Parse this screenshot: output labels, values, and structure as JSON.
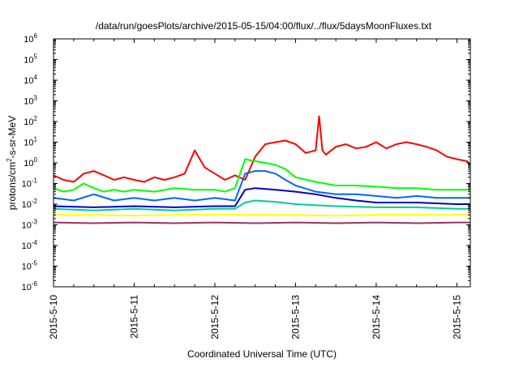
{
  "chart_data": {
    "type": "line",
    "title": "/data/run/goesPlots/archive/2015-05-15/04:00/flux/../flux/5daysMoonFluxes.txt",
    "xlabel": "Coordinated Universal Time (UTC)",
    "ylabel": {
      "prefix": "protons/cm",
      "sup": "2",
      "suffix": "-s-sr-MeV"
    },
    "y_scale": "log",
    "ylim": [
      1e-06,
      1000000.0
    ],
    "y_ticks": [
      {
        "value": 1e-06,
        "base": "10",
        "exp": "-6"
      },
      {
        "value": 1e-05,
        "base": "10",
        "exp": "-5"
      },
      {
        "value": 0.0001,
        "base": "10",
        "exp": "-4"
      },
      {
        "value": 0.001,
        "base": "10",
        "exp": "-3"
      },
      {
        "value": 0.01,
        "base": "10",
        "exp": "-2"
      },
      {
        "value": 0.1,
        "base": "10",
        "exp": "-1"
      },
      {
        "value": 1,
        "base": "10",
        "exp": "0"
      },
      {
        "value": 10,
        "base": "10",
        "exp": "1"
      },
      {
        "value": 100,
        "base": "10",
        "exp": "2"
      },
      {
        "value": 1000,
        "base": "10",
        "exp": "3"
      },
      {
        "value": 10000,
        "base": "10",
        "exp": "4"
      },
      {
        "value": 100000,
        "base": "10",
        "exp": "5"
      },
      {
        "value": 1000000,
        "base": "10",
        "exp": "6"
      }
    ],
    "xlim": [
      "2015-05-10",
      "2015-05-15T04:00"
    ],
    "x_ticks": [
      "2015-5-10",
      "2015-5-11",
      "2015-5-12",
      "2015-5-13",
      "2015-5-14",
      "2015-5-15"
    ],
    "grid": false,
    "legend": "none",
    "series": [
      {
        "color": "#ff0000",
        "x": [
          "2015-05-10T00:00",
          "2015-05-10T03:00",
          "2015-05-10T06:00",
          "2015-05-10T09:00",
          "2015-05-10T12:00",
          "2015-05-10T15:00",
          "2015-05-10T18:00",
          "2015-05-10T21:00",
          "2015-05-11T00:00",
          "2015-05-11T03:00",
          "2015-05-11T06:00",
          "2015-05-11T09:00",
          "2015-05-11T12:00",
          "2015-05-11T15:00",
          "2015-05-11T18:00",
          "2015-05-11T21:00",
          "2015-05-12T00:00",
          "2015-05-12T03:00",
          "2015-05-12T06:00",
          "2015-05-12T09:00",
          "2015-05-12T12:00",
          "2015-05-12T15:00",
          "2015-05-12T18:00",
          "2015-05-12T21:00",
          "2015-05-13T00:00",
          "2015-05-13T03:00",
          "2015-05-13T06:00",
          "2015-05-13T07:00",
          "2015-05-13T08:00",
          "2015-05-13T09:00",
          "2015-05-13T12:00",
          "2015-05-13T15:00",
          "2015-05-13T18:00",
          "2015-05-13T21:00",
          "2015-05-14T00:00",
          "2015-05-14T03:00",
          "2015-05-14T06:00",
          "2015-05-14T09:00",
          "2015-05-14T12:00",
          "2015-05-14T15:00",
          "2015-05-14T18:00",
          "2015-05-14T21:00",
          "2015-05-15T00:00",
          "2015-05-15T03:00",
          "2015-05-15T04:00"
        ],
        "values": [
          0.25,
          0.15,
          0.12,
          0.3,
          0.4,
          0.25,
          0.15,
          0.2,
          0.15,
          0.12,
          0.2,
          0.15,
          0.2,
          0.3,
          4,
          0.6,
          0.3,
          0.15,
          0.25,
          0.15,
          2,
          8,
          10,
          12,
          8,
          3,
          4,
          180,
          4,
          2.5,
          6,
          8,
          5,
          6,
          10,
          5,
          8,
          10,
          8,
          6,
          4,
          2,
          1.5,
          1.2,
          0.8
        ]
      },
      {
        "color": "#00ff00",
        "x": [
          "2015-05-10T00:00",
          "2015-05-10T03:00",
          "2015-05-10T06:00",
          "2015-05-10T09:00",
          "2015-05-10T12:00",
          "2015-05-10T15:00",
          "2015-05-10T18:00",
          "2015-05-10T21:00",
          "2015-05-11T00:00",
          "2015-05-11T06:00",
          "2015-05-11T12:00",
          "2015-05-11T18:00",
          "2015-05-12T00:00",
          "2015-05-12T03:00",
          "2015-05-12T06:00",
          "2015-05-12T09:00",
          "2015-05-12T12:00",
          "2015-05-12T15:00",
          "2015-05-12T18:00",
          "2015-05-12T21:00",
          "2015-05-13T00:00",
          "2015-05-13T06:00",
          "2015-05-13T12:00",
          "2015-05-13T18:00",
          "2015-05-14T00:00",
          "2015-05-14T06:00",
          "2015-05-14T12:00",
          "2015-05-14T18:00",
          "2015-05-15T00:00",
          "2015-05-15T04:00"
        ],
        "values": [
          0.06,
          0.04,
          0.05,
          0.1,
          0.06,
          0.04,
          0.05,
          0.04,
          0.05,
          0.04,
          0.06,
          0.05,
          0.05,
          0.04,
          0.06,
          1.5,
          1.2,
          1,
          0.8,
          0.5,
          0.2,
          0.12,
          0.08,
          0.08,
          0.07,
          0.06,
          0.06,
          0.05,
          0.05,
          0.05
        ]
      },
      {
        "color": "#0066ff",
        "x": [
          "2015-05-10T00:00",
          "2015-05-10T06:00",
          "2015-05-10T12:00",
          "2015-05-10T18:00",
          "2015-05-11T00:00",
          "2015-05-11T06:00",
          "2015-05-11T12:00",
          "2015-05-11T18:00",
          "2015-05-12T00:00",
          "2015-05-12T06:00",
          "2015-05-12T09:00",
          "2015-05-12T12:00",
          "2015-05-12T15:00",
          "2015-05-12T18:00",
          "2015-05-12T21:00",
          "2015-05-13T00:00",
          "2015-05-13T06:00",
          "2015-05-13T12:00",
          "2015-05-13T18:00",
          "2015-05-14T00:00",
          "2015-05-14T06:00",
          "2015-05-14T12:00",
          "2015-05-14T18:00",
          "2015-05-15T00:00",
          "2015-05-15T04:00"
        ],
        "values": [
          0.02,
          0.015,
          0.03,
          0.015,
          0.02,
          0.015,
          0.02,
          0.015,
          0.02,
          0.015,
          0.3,
          0.4,
          0.4,
          0.3,
          0.15,
          0.08,
          0.04,
          0.03,
          0.03,
          0.025,
          0.02,
          0.025,
          0.02,
          0.02,
          0.02
        ]
      },
      {
        "color": "#0000cc",
        "x": [
          "2015-05-10T00:00",
          "2015-05-10T12:00",
          "2015-05-11T00:00",
          "2015-05-11T12:00",
          "2015-05-12T00:00",
          "2015-05-12T06:00",
          "2015-05-12T09:00",
          "2015-05-12T12:00",
          "2015-05-12T18:00",
          "2015-05-13T00:00",
          "2015-05-13T06:00",
          "2015-05-13T12:00",
          "2015-05-13T18:00",
          "2015-05-14T00:00",
          "2015-05-14T12:00",
          "2015-05-15T00:00",
          "2015-05-15T04:00"
        ],
        "values": [
          0.008,
          0.007,
          0.008,
          0.007,
          0.008,
          0.008,
          0.05,
          0.06,
          0.05,
          0.04,
          0.03,
          0.02,
          0.015,
          0.012,
          0.012,
          0.01,
          0.01
        ]
      },
      {
        "color": "#00cc99",
        "x": [
          "2015-05-10T00:00",
          "2015-05-10T12:00",
          "2015-05-11T00:00",
          "2015-05-11T12:00",
          "2015-05-12T00:00",
          "2015-05-12T06:00",
          "2015-05-12T09:00",
          "2015-05-12T12:00",
          "2015-05-12T18:00",
          "2015-05-13T00:00",
          "2015-05-13T12:00",
          "2015-05-14T00:00",
          "2015-05-14T12:00",
          "2015-05-15T00:00",
          "2015-05-15T04:00"
        ],
        "values": [
          0.006,
          0.005,
          0.006,
          0.005,
          0.006,
          0.006,
          0.012,
          0.015,
          0.013,
          0.01,
          0.008,
          0.007,
          0.007,
          0.006,
          0.006
        ]
      },
      {
        "color": "#ffff00",
        "x": [
          "2015-05-10T00:00",
          "2015-05-10T12:00",
          "2015-05-11T00:00",
          "2015-05-11T12:00",
          "2015-05-12T00:00",
          "2015-05-12T12:00",
          "2015-05-13T00:00",
          "2015-05-13T12:00",
          "2015-05-14T00:00",
          "2015-05-14T12:00",
          "2015-05-15T00:00",
          "2015-05-15T04:00"
        ],
        "values": [
          0.003,
          0.003,
          0.0028,
          0.003,
          0.003,
          0.003,
          0.003,
          0.0028,
          0.003,
          0.003,
          0.003,
          0.003
        ]
      },
      {
        "color": "#993366",
        "x": [
          "2015-05-10T00:00",
          "2015-05-10T12:00",
          "2015-05-11T00:00",
          "2015-05-11T12:00",
          "2015-05-12T00:00",
          "2015-05-12T12:00",
          "2015-05-13T00:00",
          "2015-05-13T12:00",
          "2015-05-14T00:00",
          "2015-05-14T12:00",
          "2015-05-15T00:00",
          "2015-05-15T04:00"
        ],
        "values": [
          0.0013,
          0.0012,
          0.0013,
          0.0012,
          0.0013,
          0.0012,
          0.0013,
          0.0012,
          0.0013,
          0.0012,
          0.0013,
          0.0013
        ]
      }
    ]
  }
}
